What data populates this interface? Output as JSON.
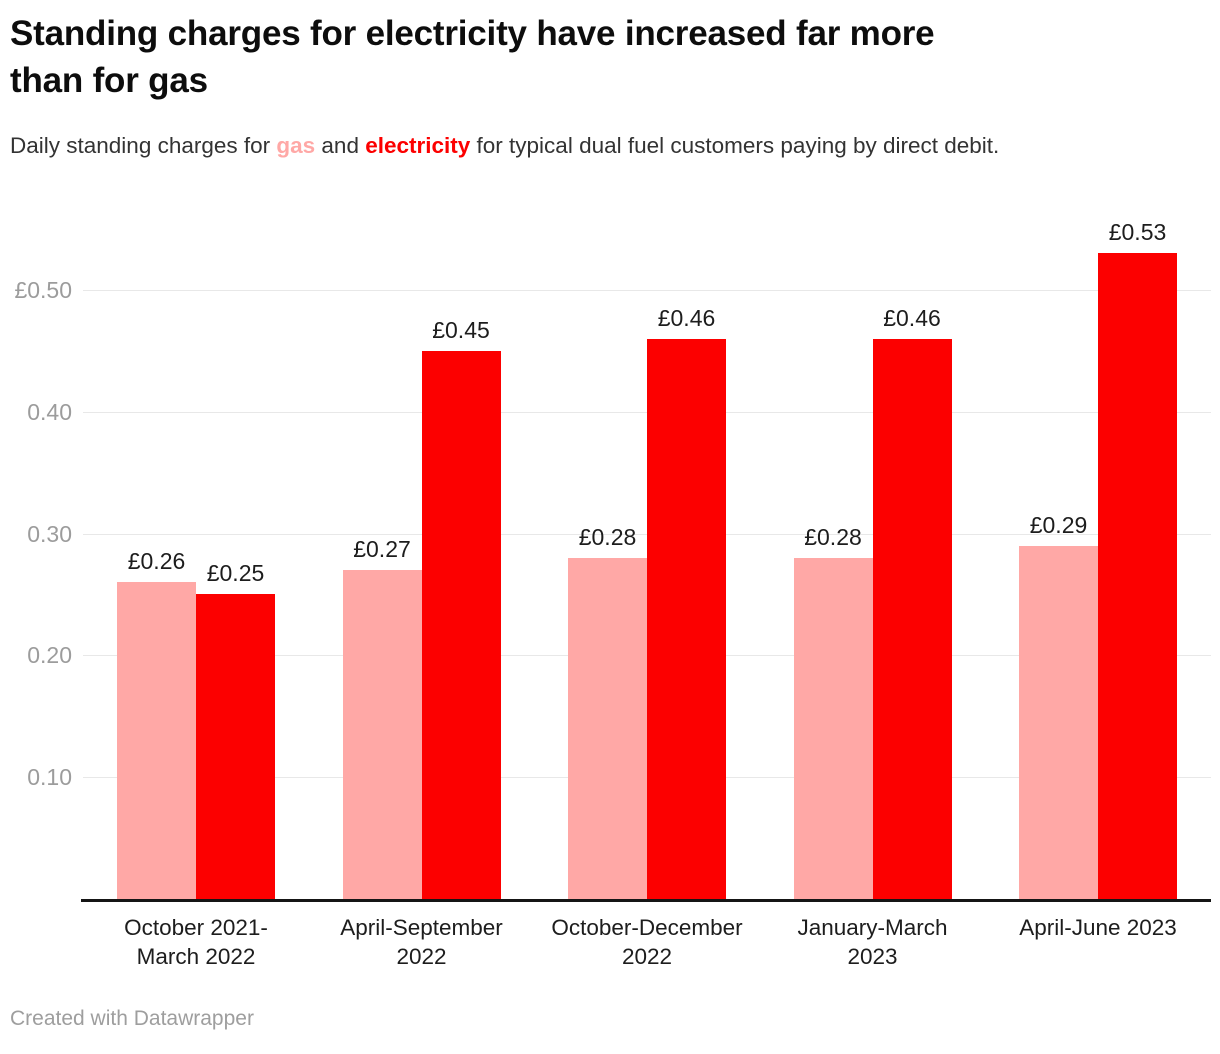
{
  "header": {
    "title_lines": [
      "Standing charges for electricity have increased far more",
      "than for gas"
    ],
    "subtitle": {
      "prefix": "Daily standing charges for ",
      "gas_word": "gas",
      "connector": " and ",
      "electricity_word": "electricity",
      "suffix": " for typical dual fuel customers paying by direct debit."
    }
  },
  "footer": {
    "attribution": "Created with Datawrapper"
  },
  "colors": {
    "gas": "#ffa8a6",
    "electricity": "#fc0000",
    "grid": "#e8e8e8",
    "axis_text": "#9c9c9c",
    "baseline": "#151515"
  },
  "chart_data": {
    "type": "bar",
    "title": "Standing charges for electricity have increased far more than for gas",
    "subtitle": "Daily standing charges for gas and electricity for typical dual fuel customers paying by direct debit.",
    "categories": [
      "October 2021-March 2022",
      "April-September 2022",
      "October-December 2022",
      "January-March 2023",
      "April-June 2023"
    ],
    "category_lines": [
      [
        "October 2021-",
        "March 2022"
      ],
      [
        "April-September",
        "2022"
      ],
      [
        "October-December",
        "2022"
      ],
      [
        "January-March",
        "2023"
      ],
      [
        "April-June 2023"
      ]
    ],
    "series": [
      {
        "name": "gas",
        "values": [
          0.26,
          0.27,
          0.28,
          0.28,
          0.29
        ],
        "labels": [
          "£0.26",
          "£0.27",
          "£0.28",
          "£0.28",
          "£0.29"
        ]
      },
      {
        "name": "electricity",
        "values": [
          0.25,
          0.45,
          0.46,
          0.46,
          0.53
        ],
        "labels": [
          "£0.25",
          "£0.45",
          "£0.46",
          "£0.46",
          "£0.53"
        ]
      }
    ],
    "y_axis": {
      "unit": "£ per day",
      "range": [
        0,
        0.55
      ],
      "grid": true,
      "ticks": [
        {
          "label": "£0.50",
          "value": 0.5
        },
        {
          "label": "0.40",
          "value": 0.4
        },
        {
          "label": "0.30",
          "value": 0.3
        },
        {
          "label": "0.20",
          "value": 0.2
        },
        {
          "label": "0.10",
          "value": 0.1
        }
      ]
    },
    "legend_position": "none",
    "value_prefix": "£"
  }
}
